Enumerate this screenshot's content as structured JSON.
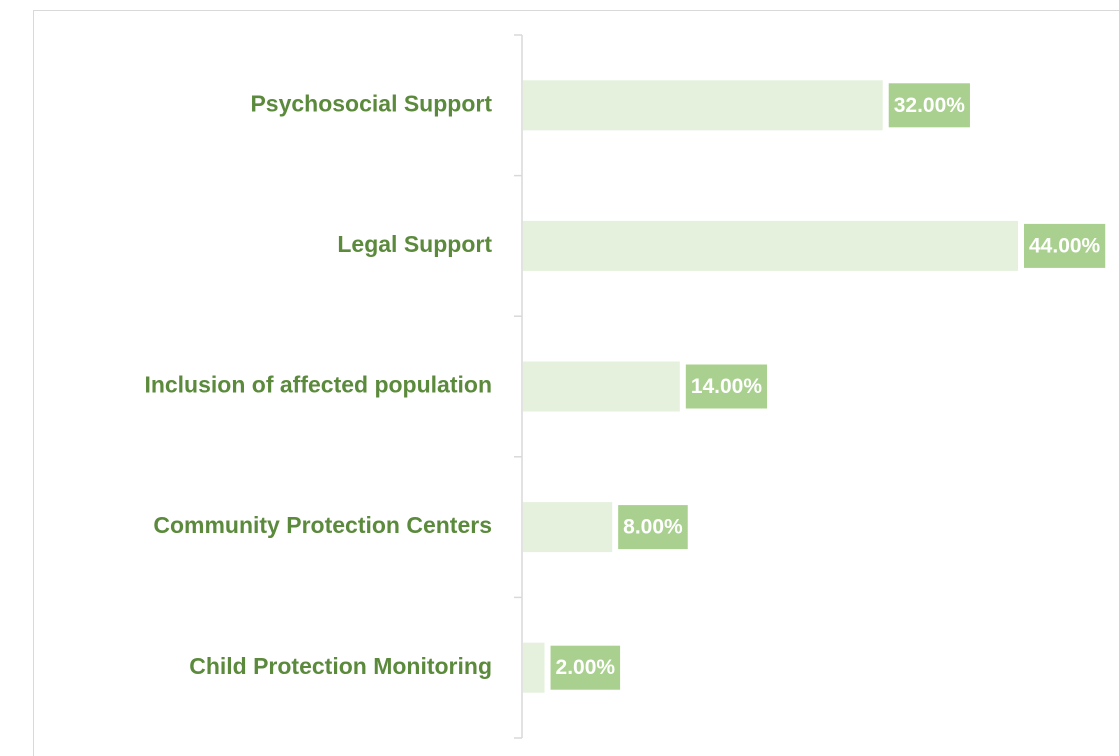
{
  "chart_data": {
    "type": "bar",
    "orientation": "horizontal",
    "categories": [
      "Psychosocial Support",
      "Legal Support",
      "Inclusion of affected population",
      "Community Protection Centers",
      "Child Protection Monitoring"
    ],
    "values": [
      32,
      44,
      14,
      8,
      2
    ],
    "value_labels": [
      "32.00%",
      "44.00%",
      "14.00%",
      "8.00%",
      "2.00%"
    ],
    "color": "#e5f1dd",
    "label_color": "#a9d08e",
    "text_color": "#5b8a3c"
  }
}
